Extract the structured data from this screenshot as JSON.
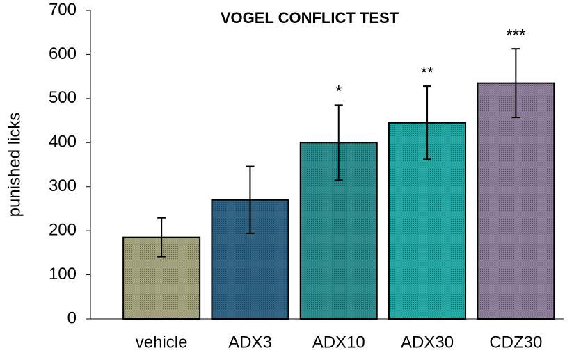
{
  "chart_data": {
    "type": "bar",
    "title": "VOGEL CONFLICT TEST",
    "y_label": "punished licks",
    "categories": [
      "vehicle",
      "ADX3",
      "ADX10",
      "ADX30",
      "CDZ30"
    ],
    "values": [
      185,
      270,
      400,
      445,
      535
    ],
    "errors": [
      44,
      76,
      85,
      83,
      78
    ],
    "annotations": [
      null,
      null,
      "*",
      "**",
      "***"
    ],
    "colors": [
      "#a3a07c",
      "#2f6183",
      "#2b8b8c",
      "#22a6a1",
      "#8b7b99"
    ],
    "ylim": [
      0,
      700
    ],
    "yticks": [
      0,
      100,
      200,
      300,
      400,
      500,
      600,
      700
    ],
    "grid": false
  }
}
